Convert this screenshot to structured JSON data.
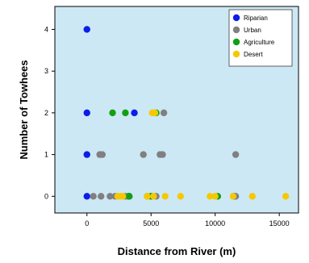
{
  "chart_data": {
    "type": "scatter",
    "title": "",
    "xlabel": "Distance from River (m)",
    "ylabel": "Number of Towhees",
    "xlim": [
      -2500,
      16500
    ],
    "ylim": [
      -0.4,
      4.55
    ],
    "xticks": [
      0,
      5000,
      10000,
      15000
    ],
    "yticks": [
      0,
      1,
      2,
      3,
      4
    ],
    "grid": false,
    "plot_background": "#cde8f5",
    "legend_position": "top-right",
    "series": [
      {
        "name": "Riparian",
        "color": "#0a1ee8",
        "points": [
          [
            0,
            4
          ],
          [
            0,
            2
          ],
          [
            0,
            1
          ],
          [
            0,
            0
          ],
          [
            3700,
            2
          ],
          [
            3300,
            0
          ],
          [
            11500,
            0
          ]
        ]
      },
      {
        "name": "Urban",
        "color": "#808080",
        "points": [
          [
            1000,
            1
          ],
          [
            1200,
            1
          ],
          [
            4400,
            1
          ],
          [
            5700,
            1
          ],
          [
            5900,
            1
          ],
          [
            11600,
            1
          ],
          [
            6000,
            2
          ],
          [
            500,
            0
          ],
          [
            1100,
            0
          ],
          [
            1800,
            0
          ],
          [
            2200,
            0
          ],
          [
            3000,
            0
          ],
          [
            3200,
            0
          ],
          [
            4700,
            0
          ],
          [
            5000,
            0
          ],
          [
            5400,
            0
          ],
          [
            11600,
            0
          ]
        ]
      },
      {
        "name": "Agriculture",
        "color": "#12a012",
        "points": [
          [
            2000,
            2
          ],
          [
            3000,
            2
          ],
          [
            5400,
            2
          ],
          [
            3300,
            0
          ],
          [
            5000,
            0
          ],
          [
            10200,
            0
          ]
        ]
      },
      {
        "name": "Desert",
        "color": "#f5c800",
        "points": [
          [
            5100,
            2
          ],
          [
            5300,
            2
          ],
          [
            2400,
            0
          ],
          [
            2600,
            0
          ],
          [
            2800,
            0
          ],
          [
            4700,
            0
          ],
          [
            5200,
            0
          ],
          [
            6100,
            0
          ],
          [
            7300,
            0
          ],
          [
            9600,
            0
          ],
          [
            10000,
            0
          ],
          [
            11400,
            0
          ],
          [
            12900,
            0
          ],
          [
            15500,
            0
          ]
        ]
      }
    ]
  }
}
